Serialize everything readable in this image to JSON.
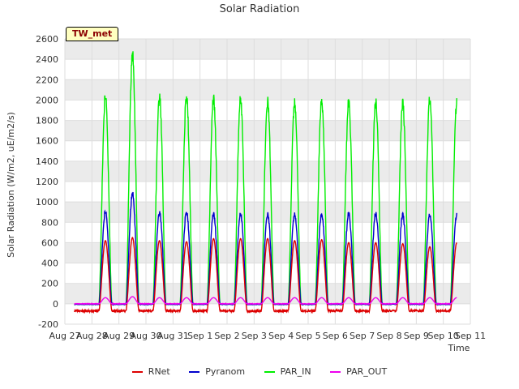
{
  "chart_data": {
    "type": "line",
    "title": "Solar Radiation",
    "xlabel": "Time",
    "ylabel": "Solar Radiation (W/m2, uE/m2/s)",
    "badge": "TW_met",
    "ylim": [
      -200,
      2600
    ],
    "yticks": [
      -200,
      0,
      200,
      400,
      600,
      800,
      1000,
      1200,
      1400,
      1600,
      1800,
      2000,
      2200,
      2400,
      2600
    ],
    "xticks": [
      "Aug 27",
      "Aug 28",
      "Aug 29",
      "Aug 30",
      "Aug 31",
      "Sep 1",
      "Sep 2",
      "Sep 3",
      "Sep 4",
      "Sep 5",
      "Sep 6",
      "Sep 7",
      "Sep 8",
      "Sep 9",
      "Sep 10",
      "Sep 11"
    ],
    "xlim_days": [
      0,
      15
    ],
    "grid": true,
    "banding": "alternating gray bands",
    "legend_position": "bottom",
    "colors": {
      "RNet": "#dd0000",
      "Pyranom": "#0000cc",
      "PAR_IN": "#00ee00",
      "PAR_OUT": "#ee00ee"
    },
    "series": [
      {
        "name": "RNet",
        "night": -70,
        "peaks": [
          620,
          650,
          620,
          610,
          640,
          640,
          640,
          620,
          630,
          600,
          600,
          590,
          560,
          600
        ]
      },
      {
        "name": "Pyranom",
        "night": -5,
        "peaks": [
          910,
          1080,
          890,
          900,
          880,
          880,
          880,
          880,
          880,
          880,
          880,
          870,
          870,
          870
        ]
      },
      {
        "name": "PAR_IN",
        "night": -5,
        "peaks": [
          2050,
          2440,
          2020,
          2040,
          2010,
          2010,
          1990,
          1980,
          2000,
          1970,
          1970,
          1960,
          2000,
          1970
        ]
      },
      {
        "name": "PAR_OUT",
        "night": 0,
        "peaks": [
          60,
          70,
          60,
          60,
          60,
          60,
          60,
          60,
          60,
          60,
          60,
          60,
          60,
          60
        ]
      }
    ],
    "data_start_day": 0.35,
    "data_end_day": 14.5
  },
  "legend": [
    {
      "name": "RNet",
      "color": "#dd0000"
    },
    {
      "name": "Pyranom",
      "color": "#0000cc"
    },
    {
      "name": "PAR_IN",
      "color": "#00ee00"
    },
    {
      "name": "PAR_OUT",
      "color": "#ee00ee"
    }
  ]
}
